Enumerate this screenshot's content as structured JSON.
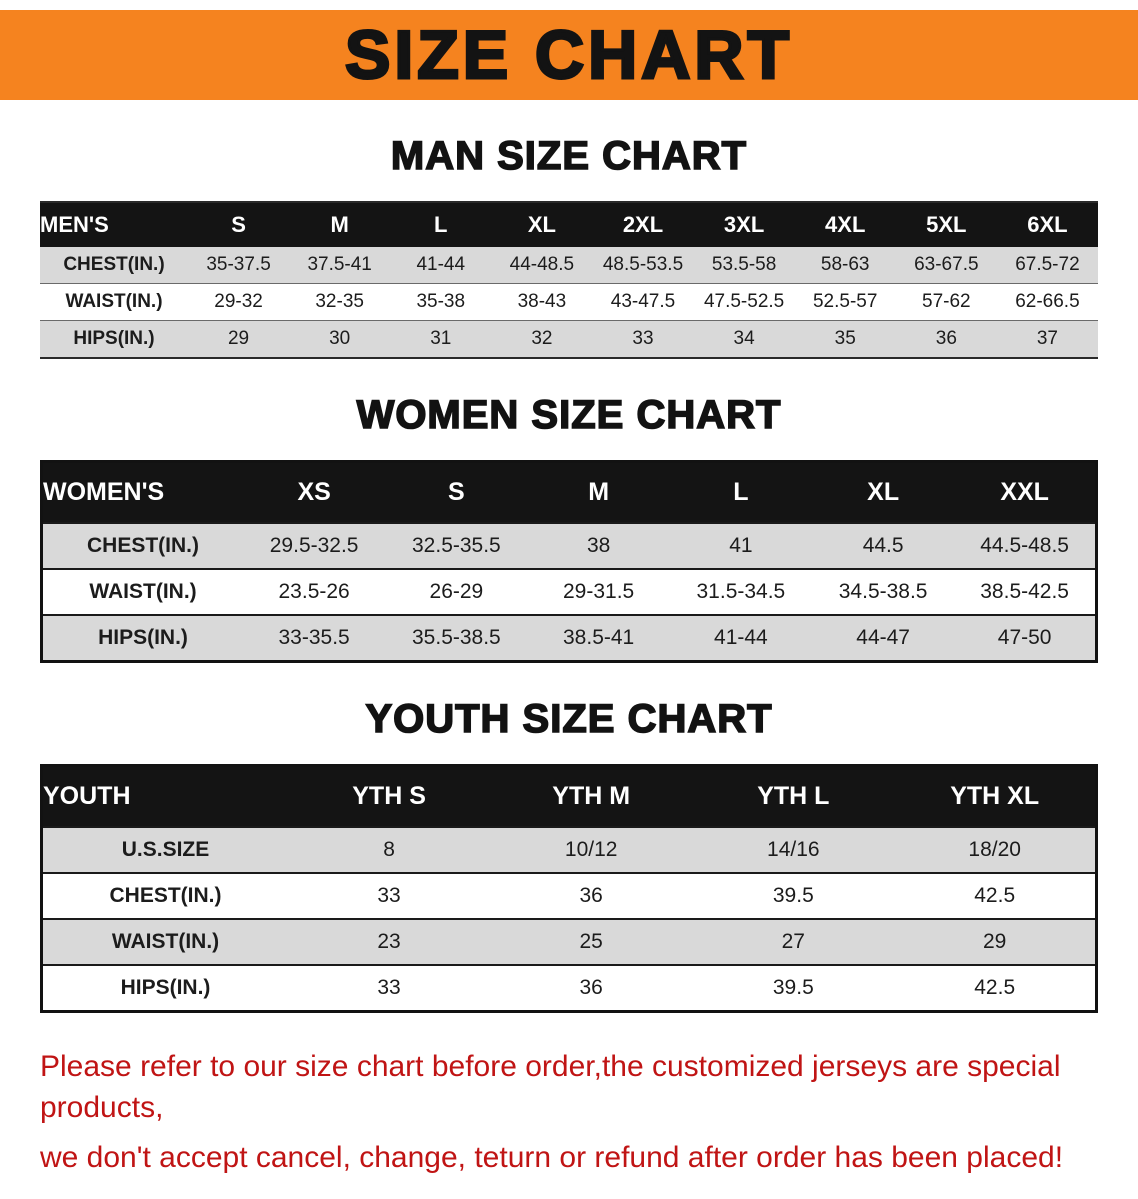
{
  "banner": {
    "title": "SIZE CHART"
  },
  "sections": [
    {
      "heading": "MAN SIZE CHART",
      "table": {
        "label": "MEN'S",
        "columns": [
          "S",
          "M",
          "L",
          "XL",
          "2XL",
          "3XL",
          "4XL",
          "5XL",
          "6XL"
        ],
        "rows": [
          {
            "label": "CHEST(IN.)",
            "values": [
              "35-37.5",
              "37.5-41",
              "41-44",
              "44-48.5",
              "48.5-53.5",
              "53.5-58",
              "58-63",
              "63-67.5",
              "67.5-72"
            ]
          },
          {
            "label": "WAIST(IN.)",
            "values": [
              "29-32",
              "32-35",
              "35-38",
              "38-43",
              "43-47.5",
              "47.5-52.5",
              "52.5-57",
              "57-62",
              "62-66.5"
            ]
          },
          {
            "label": "HIPS(IN.)",
            "values": [
              "29",
              "30",
              "31",
              "32",
              "33",
              "34",
              "35",
              "36",
              "37"
            ]
          }
        ]
      }
    },
    {
      "heading": "WOMEN SIZE CHART",
      "table": {
        "label": "WOMEN'S",
        "columns": [
          "XS",
          "S",
          "M",
          "L",
          "XL",
          "XXL"
        ],
        "rows": [
          {
            "label": "CHEST(IN.)",
            "values": [
              "29.5-32.5",
              "32.5-35.5",
              "38",
              "41",
              "44.5",
              "44.5-48.5"
            ]
          },
          {
            "label": "WAIST(IN.)",
            "values": [
              "23.5-26",
              "26-29",
              "29-31.5",
              "31.5-34.5",
              "34.5-38.5",
              "38.5-42.5"
            ]
          },
          {
            "label": "HIPS(IN.)",
            "values": [
              "33-35.5",
              "35.5-38.5",
              "38.5-41",
              "41-44",
              "44-47",
              "47-50"
            ]
          }
        ]
      }
    },
    {
      "heading": "YOUTH SIZE CHART",
      "table": {
        "label": "YOUTH",
        "columns": [
          "YTH S",
          "YTH M",
          "YTH L",
          "YTH XL"
        ],
        "rows": [
          {
            "label": "U.S.SIZE",
            "values": [
              "8",
              "10/12",
              "14/16",
              "18/20"
            ]
          },
          {
            "label": "CHEST(IN.)",
            "values": [
              "33",
              "36",
              "39.5",
              "42.5"
            ]
          },
          {
            "label": "WAIST(IN.)",
            "values": [
              "23",
              "25",
              "27",
              "29"
            ]
          },
          {
            "label": "HIPS(IN.)",
            "values": [
              "33",
              "36",
              "39.5",
              "42.5"
            ]
          }
        ]
      }
    }
  ],
  "disclaimer": {
    "lines": [
      "Please refer to our size chart before order,the customized jerseys are special products,",
      "we don't accept cancel, change, teturn or refund after order has been placed!"
    ]
  },
  "colors": {
    "banner_orange": "#F5831F",
    "header_black": "#141414",
    "stripe_gray": "#D9D9D9",
    "disclaimer_red": "#C01414"
  }
}
